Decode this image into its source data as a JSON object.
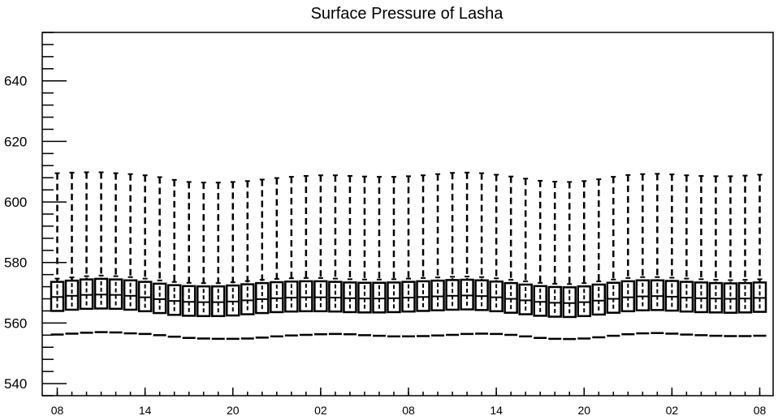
{
  "chart_data": {
    "type": "boxplot",
    "title": "Surface Pressure of Lasha",
    "xlabel": "",
    "ylabel": "",
    "ylim": [
      536,
      656
    ],
    "y_major_ticks": [
      540,
      560,
      580,
      600,
      620,
      640
    ],
    "y_minor_step": 4,
    "x_tick_labels": [
      {
        "index": 0,
        "label": "08"
      },
      {
        "index": 6,
        "label": "14"
      },
      {
        "index": 12,
        "label": "20"
      },
      {
        "index": 18,
        "label": "02"
      },
      {
        "index": 24,
        "label": "08"
      },
      {
        "index": 30,
        "label": "14"
      },
      {
        "index": 36,
        "label": "20"
      },
      {
        "index": 42,
        "label": "02"
      },
      {
        "index": 48,
        "label": "08"
      }
    ],
    "lower_marker": [
      556.2,
      556.5,
      556.8,
      557.0,
      556.9,
      556.6,
      556.4,
      556.0,
      555.5,
      555.1,
      554.9,
      554.8,
      554.8,
      554.9,
      555.2,
      555.6,
      555.9,
      556.1,
      556.3,
      556.4,
      556.3,
      556.0,
      555.8,
      555.6,
      555.6,
      555.7,
      555.9,
      556.1,
      556.4,
      556.5,
      556.4,
      556.1,
      555.6,
      555.1,
      554.8,
      554.7,
      554.9,
      555.3,
      555.8,
      556.3,
      556.6,
      556.7,
      556.5,
      556.2,
      556.0,
      555.8,
      555.7,
      555.7,
      555.8
    ],
    "whisker_high": [
      609.5,
      609.7,
      609.8,
      609.8,
      609.5,
      609.2,
      608.8,
      608.2,
      607.3,
      606.6,
      606.4,
      606.4,
      606.6,
      606.9,
      607.4,
      607.9,
      608.3,
      608.6,
      608.8,
      608.8,
      608.6,
      608.4,
      608.3,
      608.3,
      608.5,
      608.8,
      609.2,
      609.6,
      609.7,
      609.5,
      609.0,
      608.4,
      607.7,
      607.0,
      606.7,
      606.6,
      606.9,
      607.5,
      608.3,
      608.9,
      609.2,
      609.3,
      609.1,
      608.8,
      608.6,
      608.5,
      608.5,
      608.7,
      609.0
    ],
    "box_high": [
      573.6,
      574.0,
      574.4,
      574.6,
      574.4,
      574.1,
      573.6,
      573.0,
      572.5,
      572.2,
      572.1,
      572.1,
      572.4,
      572.8,
      573.2,
      573.5,
      573.7,
      573.8,
      573.8,
      573.6,
      573.4,
      573.3,
      573.3,
      573.4,
      573.6,
      573.8,
      574.0,
      574.2,
      574.3,
      574.1,
      573.7,
      573.2,
      572.7,
      572.2,
      571.9,
      571.8,
      572.1,
      572.7,
      573.3,
      573.8,
      574.1,
      574.1,
      573.9,
      573.6,
      573.4,
      573.2,
      573.1,
      573.2,
      573.4
    ],
    "median": [
      568.6,
      569.0,
      569.3,
      569.4,
      569.3,
      569.0,
      568.5,
      567.9,
      567.3,
      567.0,
      566.9,
      566.9,
      567.1,
      567.5,
      567.9,
      568.2,
      568.4,
      568.5,
      568.5,
      568.4,
      568.2,
      568.1,
      568.1,
      568.2,
      568.4,
      568.6,
      568.8,
      569.0,
      569.1,
      568.9,
      568.5,
      568.0,
      567.5,
      567.0,
      566.7,
      566.6,
      566.9,
      567.4,
      568.0,
      568.5,
      568.8,
      568.9,
      568.7,
      568.4,
      568.2,
      568.1,
      568.0,
      568.1,
      568.3
    ],
    "box_low": [
      564.0,
      564.4,
      564.7,
      564.8,
      564.7,
      564.4,
      563.9,
      563.3,
      562.7,
      562.4,
      562.3,
      562.3,
      562.5,
      562.9,
      563.3,
      563.6,
      563.8,
      563.9,
      563.9,
      563.8,
      563.6,
      563.5,
      563.5,
      563.6,
      563.8,
      564.0,
      564.2,
      564.4,
      564.5,
      564.3,
      563.9,
      563.4,
      562.9,
      562.4,
      562.1,
      562.0,
      562.3,
      562.8,
      563.4,
      563.9,
      564.2,
      564.3,
      564.1,
      563.8,
      563.6,
      563.5,
      563.4,
      563.5,
      563.7
    ]
  }
}
